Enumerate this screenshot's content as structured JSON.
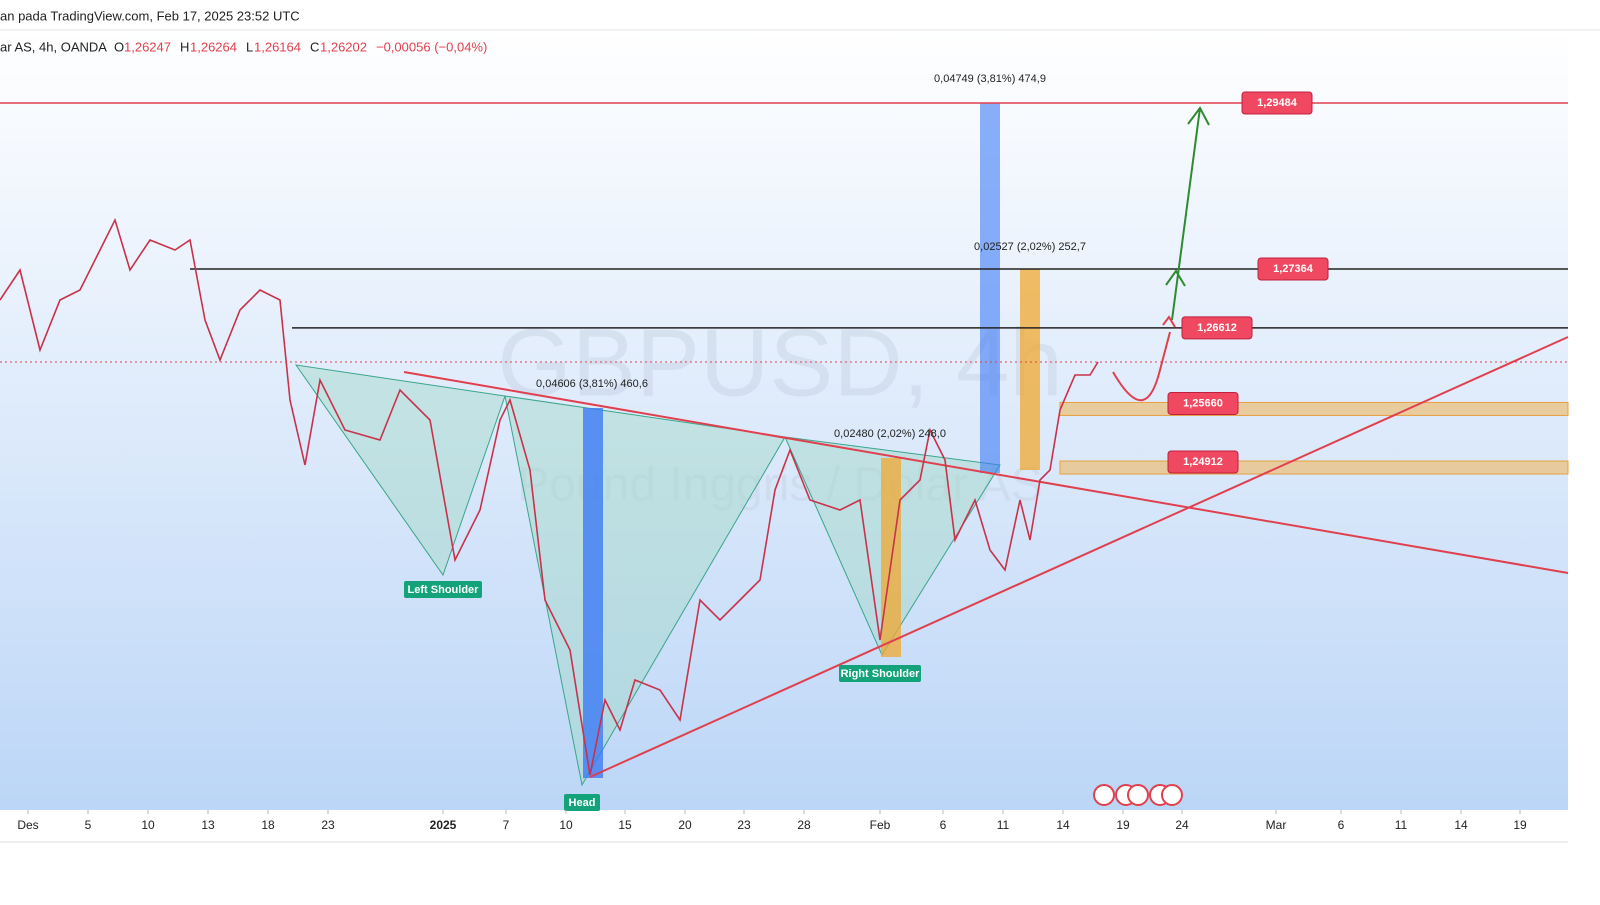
{
  "header": {
    "source": "an pada TradingView.com, Feb 17, 2025 23:52 UTC",
    "symbol": "ar AS, 4h, OANDA",
    "ohlc": [
      {
        "key": "O",
        "value": "1,26247"
      },
      {
        "key": "H",
        "value": "1,26264"
      },
      {
        "key": "L",
        "value": "1,26164"
      },
      {
        "key": "C",
        "value": "1,26202"
      }
    ],
    "change": "−0,00056 (−0,04%)"
  },
  "chart_data": {
    "type": "line",
    "title": "GBPUSD, 4h",
    "subtitle": "Pound Inggris / Dolar AS",
    "color": "#c8324a",
    "x": [
      -1.4,
      -0.4,
      0.6,
      1.6,
      2.6,
      3.6,
      4.35,
      5.1,
      6.1,
      7.35,
      8.1,
      8.85,
      9.6,
      10.6,
      11.6,
      12.6,
      13.1,
      13.85,
      14.6,
      15.85,
      17.6,
      18.6,
      20.1,
      21.35,
      22.6,
      23.6,
      24.1,
      25.1,
      25.85,
      27.1,
      28.1,
      28.85,
      29.6,
      30.35,
      31.6,
      32.6,
      33.6,
      34.6,
      35.6,
      36.6,
      37.35,
      38.1,
      39.1,
      40.6,
      41.6,
      42.6,
      43.6,
      44.6,
      45.1,
      45.85,
      46.35,
      47.35,
      48.1,
      48.85,
      49.6,
      50.1,
      50.6,
      51.1,
      51.6,
      52.35,
      53.1,
      53.5
    ],
    "values": [
      1.26968,
      1.27351,
      1.2633,
      1.26968,
      1.27096,
      1.27607,
      1.2799,
      1.27351,
      1.27735,
      1.27607,
      1.27735,
      1.26713,
      1.26202,
      1.26841,
      1.27096,
      1.26968,
      1.25691,
      1.24861,
      1.25947,
      1.25308,
      1.25181,
      1.25819,
      1.25436,
      1.23648,
      1.24287,
      1.25436,
      1.25691,
      1.24797,
      1.23137,
      1.22499,
      1.20903,
      1.2186,
      1.21477,
      1.22116,
      1.21988,
      1.21605,
      1.23137,
      1.22882,
      1.23137,
      1.23393,
      1.24542,
      1.25053,
      1.24414,
      1.24287,
      1.24414,
      1.22627,
      1.24414,
      1.2467,
      1.25308,
      1.24925,
      1.23904,
      1.24414,
      1.23776,
      1.2352,
      1.24414,
      1.23904,
      1.2467,
      1.24797,
      1.25564,
      1.26011,
      1.26011,
      1.26177
    ],
    "xlim": [
      -1.4,
      77
    ],
    "xticks": [
      {
        "value": 0,
        "label": "Des"
      },
      {
        "value": 3,
        "label": "5"
      },
      {
        "value": 6,
        "label": "10"
      },
      {
        "value": 9,
        "label": "13"
      },
      {
        "value": 12,
        "label": "18"
      },
      {
        "value": 15,
        "label": "23"
      },
      {
        "value": 20.75,
        "label": "2025"
      },
      {
        "value": 23.9,
        "label": "7"
      },
      {
        "value": 26.9,
        "label": "10"
      },
      {
        "value": 29.85,
        "label": "15"
      },
      {
        "value": 32.85,
        "label": "20"
      },
      {
        "value": 35.8,
        "label": "23"
      },
      {
        "value": 38.8,
        "label": "28"
      },
      {
        "value": 42.6,
        "label": "Feb"
      },
      {
        "value": 45.75,
        "label": "6"
      },
      {
        "value": 48.75,
        "label": "11"
      },
      {
        "value": 51.75,
        "label": "14"
      },
      {
        "value": 54.75,
        "label": "19"
      },
      {
        "value": 57.7,
        "label": "24"
      },
      {
        "value": 62.4,
        "label": "Mar"
      },
      {
        "value": 65.65,
        "label": "6"
      },
      {
        "value": 68.65,
        "label": "11"
      },
      {
        "value": 71.65,
        "label": "14"
      },
      {
        "value": 74.6,
        "label": "19"
      }
    ],
    "ylim": [
      1.20456,
      1.30416
    ],
    "levels": [
      {
        "value": 1.29484,
        "label": "1,29484",
        "color": "#e0404e"
      },
      {
        "value": 1.27364,
        "label": "1,27364",
        "color": "#222222"
      },
      {
        "value": 1.26612,
        "label": "1,26612",
        "color": "#222222"
      },
      {
        "value": 1.2566,
        "label": "1,25660",
        "color": "#f0b860"
      },
      {
        "value": 1.24912,
        "label": "1,24912",
        "color": "#f0b860"
      }
    ],
    "annotations": {
      "left_shoulder": "Left Shoulder",
      "head": "Head",
      "right_shoulder": "Right Shoulder",
      "measure_1": "0,04606 (3,81%) 460,6",
      "measure_2": "0,02480 (2,02%) 248,0",
      "measure_3": "0,04749 (3,81%) 474,9",
      "measure_4": "0,02527 (2,02%) 252,7"
    }
  }
}
